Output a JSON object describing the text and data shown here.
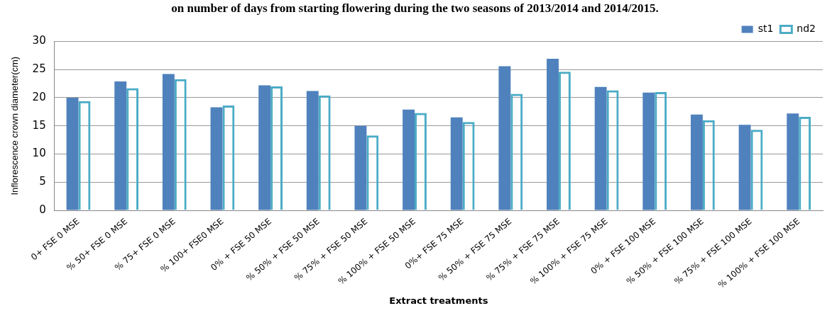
{
  "chart_data": {
    "type": "bar",
    "title": "on number of days from starting flowering during the two seasons of 2013/2014 and 2014/2015.",
    "xlabel": "Extract treatments",
    "ylabel": "Inflorescence crown diameter(cm)",
    "categories": [
      "0+ FSE 0 MSE",
      "% 50+ FSE 0 MSE",
      "% 75+ FSE 0 MSE",
      "% 100+ FSE0 MSE",
      "0% + FSE 50 MSE",
      "% 50% + FSE 50 MSE",
      "% 75% + FSE 50 MSE",
      "% 100% + FSE 50 MSE",
      "0%+ FSE 75 MSE",
      "% 50% + FSE 75 MSE",
      "% 75% + FSE 75 MSE",
      "% 100% + FSE 75 MSE",
      "0% + FSE 100 MSE",
      "% 50% + FSE 100 MSE",
      "% 75% + FSE 100 MSE",
      "% 100% + FSE 100 MSE"
    ],
    "series": [
      {
        "name": "st1",
        "color": "#4f81bd",
        "values": [
          20,
          22.9,
          24.2,
          18.3,
          22.2,
          21.2,
          15,
          17.9,
          16.5,
          25.6,
          26.9,
          21.9,
          20.9,
          17,
          15.2,
          17.2
        ]
      },
      {
        "name": "nd2",
        "color": "#4bacc6",
        "values": [
          19.4,
          21.7,
          23.3,
          18.6,
          22,
          20.4,
          13.3,
          17.3,
          15.7,
          20.7,
          24.6,
          21.3,
          21,
          16,
          14.3,
          16.6
        ]
      }
    ],
    "ylim": [
      0,
      30
    ],
    "yticks": [
      0,
      5,
      10,
      15,
      20,
      25,
      30
    ],
    "grid": "y",
    "legend": "top right"
  }
}
